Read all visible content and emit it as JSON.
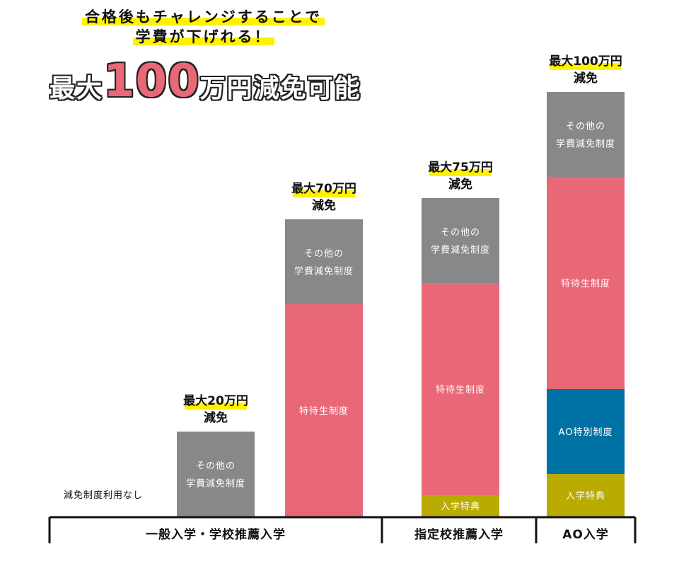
{
  "headline": {
    "line1": "合格後もチャレンジすることで",
    "line2": "学費が下げれる！"
  },
  "big_text": {
    "prefix": "最大",
    "number": "100",
    "suffix": "万円減免可能"
  },
  "colors": {
    "other": "#888888",
    "tokutai": "#e96877",
    "ao": "#0071a4",
    "nyugaku": "#b9ab00",
    "highlight": "#fff200"
  },
  "chart_data": {
    "type": "bar",
    "stacked": true,
    "unit": "万円",
    "no_discount_label": "減免制度利用なし",
    "categories": [
      {
        "label": "一般入学・学校推薦入学",
        "bars": [
          0,
          1
        ]
      },
      {
        "label": "指定校推薦入学",
        "bars": [
          2
        ]
      },
      {
        "label": "AO入学",
        "bars": [
          3
        ]
      }
    ],
    "bars": [
      {
        "total_label": [
          "最大20万円",
          "減免"
        ],
        "segments": [
          {
            "label": [
              "その他の",
              "学費減免制度"
            ],
            "value": 20,
            "color": "#888888"
          }
        ]
      },
      {
        "total_label": [
          "最大70万円",
          "減免"
        ],
        "segments": [
          {
            "label": [
              "特待生制度"
            ],
            "value": 50,
            "color": "#e96877"
          },
          {
            "label": [
              "その他の",
              "学費減免制度"
            ],
            "value": 20,
            "color": "#888888"
          }
        ]
      },
      {
        "total_label": [
          "最大75万円",
          "減免"
        ],
        "segments": [
          {
            "label": [
              "入学特典"
            ],
            "value": 5,
            "color": "#b9ab00"
          },
          {
            "label": [
              "特待生制度"
            ],
            "value": 50,
            "color": "#e96877"
          },
          {
            "label": [
              "その他の",
              "学費減免制度"
            ],
            "value": 20,
            "color": "#888888"
          }
        ]
      },
      {
        "total_label": [
          "最大100万円",
          "減免"
        ],
        "segments": [
          {
            "label": [
              "入学特典"
            ],
            "value": 10,
            "color": "#b9ab00"
          },
          {
            "label": [
              "AO特別制度"
            ],
            "value": 20,
            "color": "#0071a4"
          },
          {
            "label": [
              "特待生制度"
            ],
            "value": 50,
            "color": "#e96877"
          },
          {
            "label": [
              "その他の",
              "学費減免制度"
            ],
            "value": 20,
            "color": "#888888"
          }
        ]
      }
    ]
  }
}
